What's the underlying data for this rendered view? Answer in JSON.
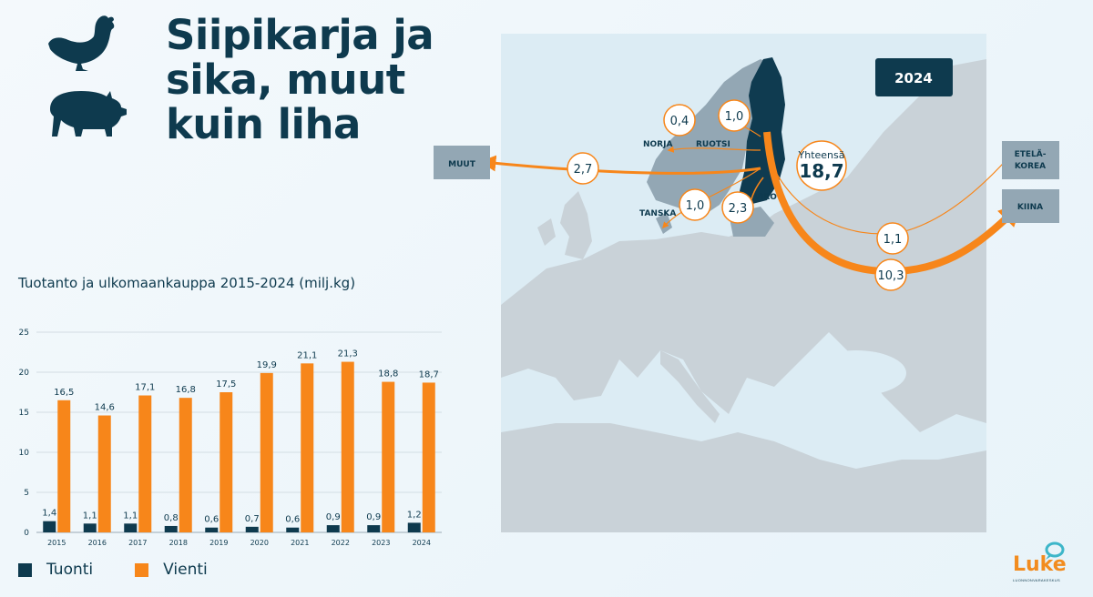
{
  "header": {
    "title_lines": [
      "Siipikarja ja",
      "sika, muut",
      "kuin liha"
    ],
    "icons": [
      "chicken-icon",
      "pig-icon"
    ]
  },
  "colors": {
    "navy": "#0e3a4e",
    "orange": "#f7861a",
    "map_land": "#c9d2d8",
    "map_sea": "#dcecf4",
    "finland": "#0f3b50"
  },
  "chart_data": {
    "type": "bar",
    "title": "Tuotanto ja ulkomaankauppa 2015-2024 (milj.kg)",
    "categories": [
      "2015",
      "2016",
      "2017",
      "2018",
      "2019",
      "2020",
      "2021",
      "2022",
      "2023",
      "2024"
    ],
    "series": [
      {
        "name": "Tuonti",
        "values": [
          1.4,
          1.1,
          1.1,
          0.8,
          0.6,
          0.7,
          0.6,
          0.9,
          0.9,
          1.2
        ],
        "labels": [
          "1,4",
          "1,1",
          "1,1",
          "0,8",
          "0,6",
          "0,7",
          "0,6",
          "0,9",
          "0,9",
          "1,2"
        ],
        "color": "#0e3a4e"
      },
      {
        "name": "Vienti",
        "values": [
          16.5,
          14.6,
          17.1,
          16.8,
          17.5,
          19.9,
          21.1,
          21.3,
          18.8,
          18.7
        ],
        "labels": [
          "16,5",
          "14,6",
          "17,1",
          "16,8",
          "17,5",
          "19,9",
          "21,1",
          "21,3",
          "18,8",
          "18,7"
        ],
        "color": "#f7861a"
      }
    ],
    "ylim": [
      0,
      25
    ],
    "yticks": [
      0,
      5,
      10,
      15,
      20,
      25
    ],
    "grid": true,
    "legend": "bottom-left"
  },
  "map": {
    "year": "2024",
    "total_label": "Yhteensä",
    "total_value": "18,7",
    "flows": [
      {
        "destination": "MUUT",
        "value": "2,7"
      },
      {
        "destination": "NORJA",
        "value": "0,4"
      },
      {
        "destination": "RUOTSI",
        "value": "1,0"
      },
      {
        "destination": "TANSKA",
        "value": "1,0"
      },
      {
        "destination": "VIRO",
        "value": "2,3"
      },
      {
        "destination": "ETELÄ-KOREA",
        "value": "1,1"
      },
      {
        "destination": "KIINA",
        "value": "10,3"
      }
    ],
    "korea_lines": [
      "ETELÄ-",
      "KOREA"
    ]
  },
  "logo": {
    "word": "Luke",
    "sub": "LUONNONVARAKESKUS"
  }
}
